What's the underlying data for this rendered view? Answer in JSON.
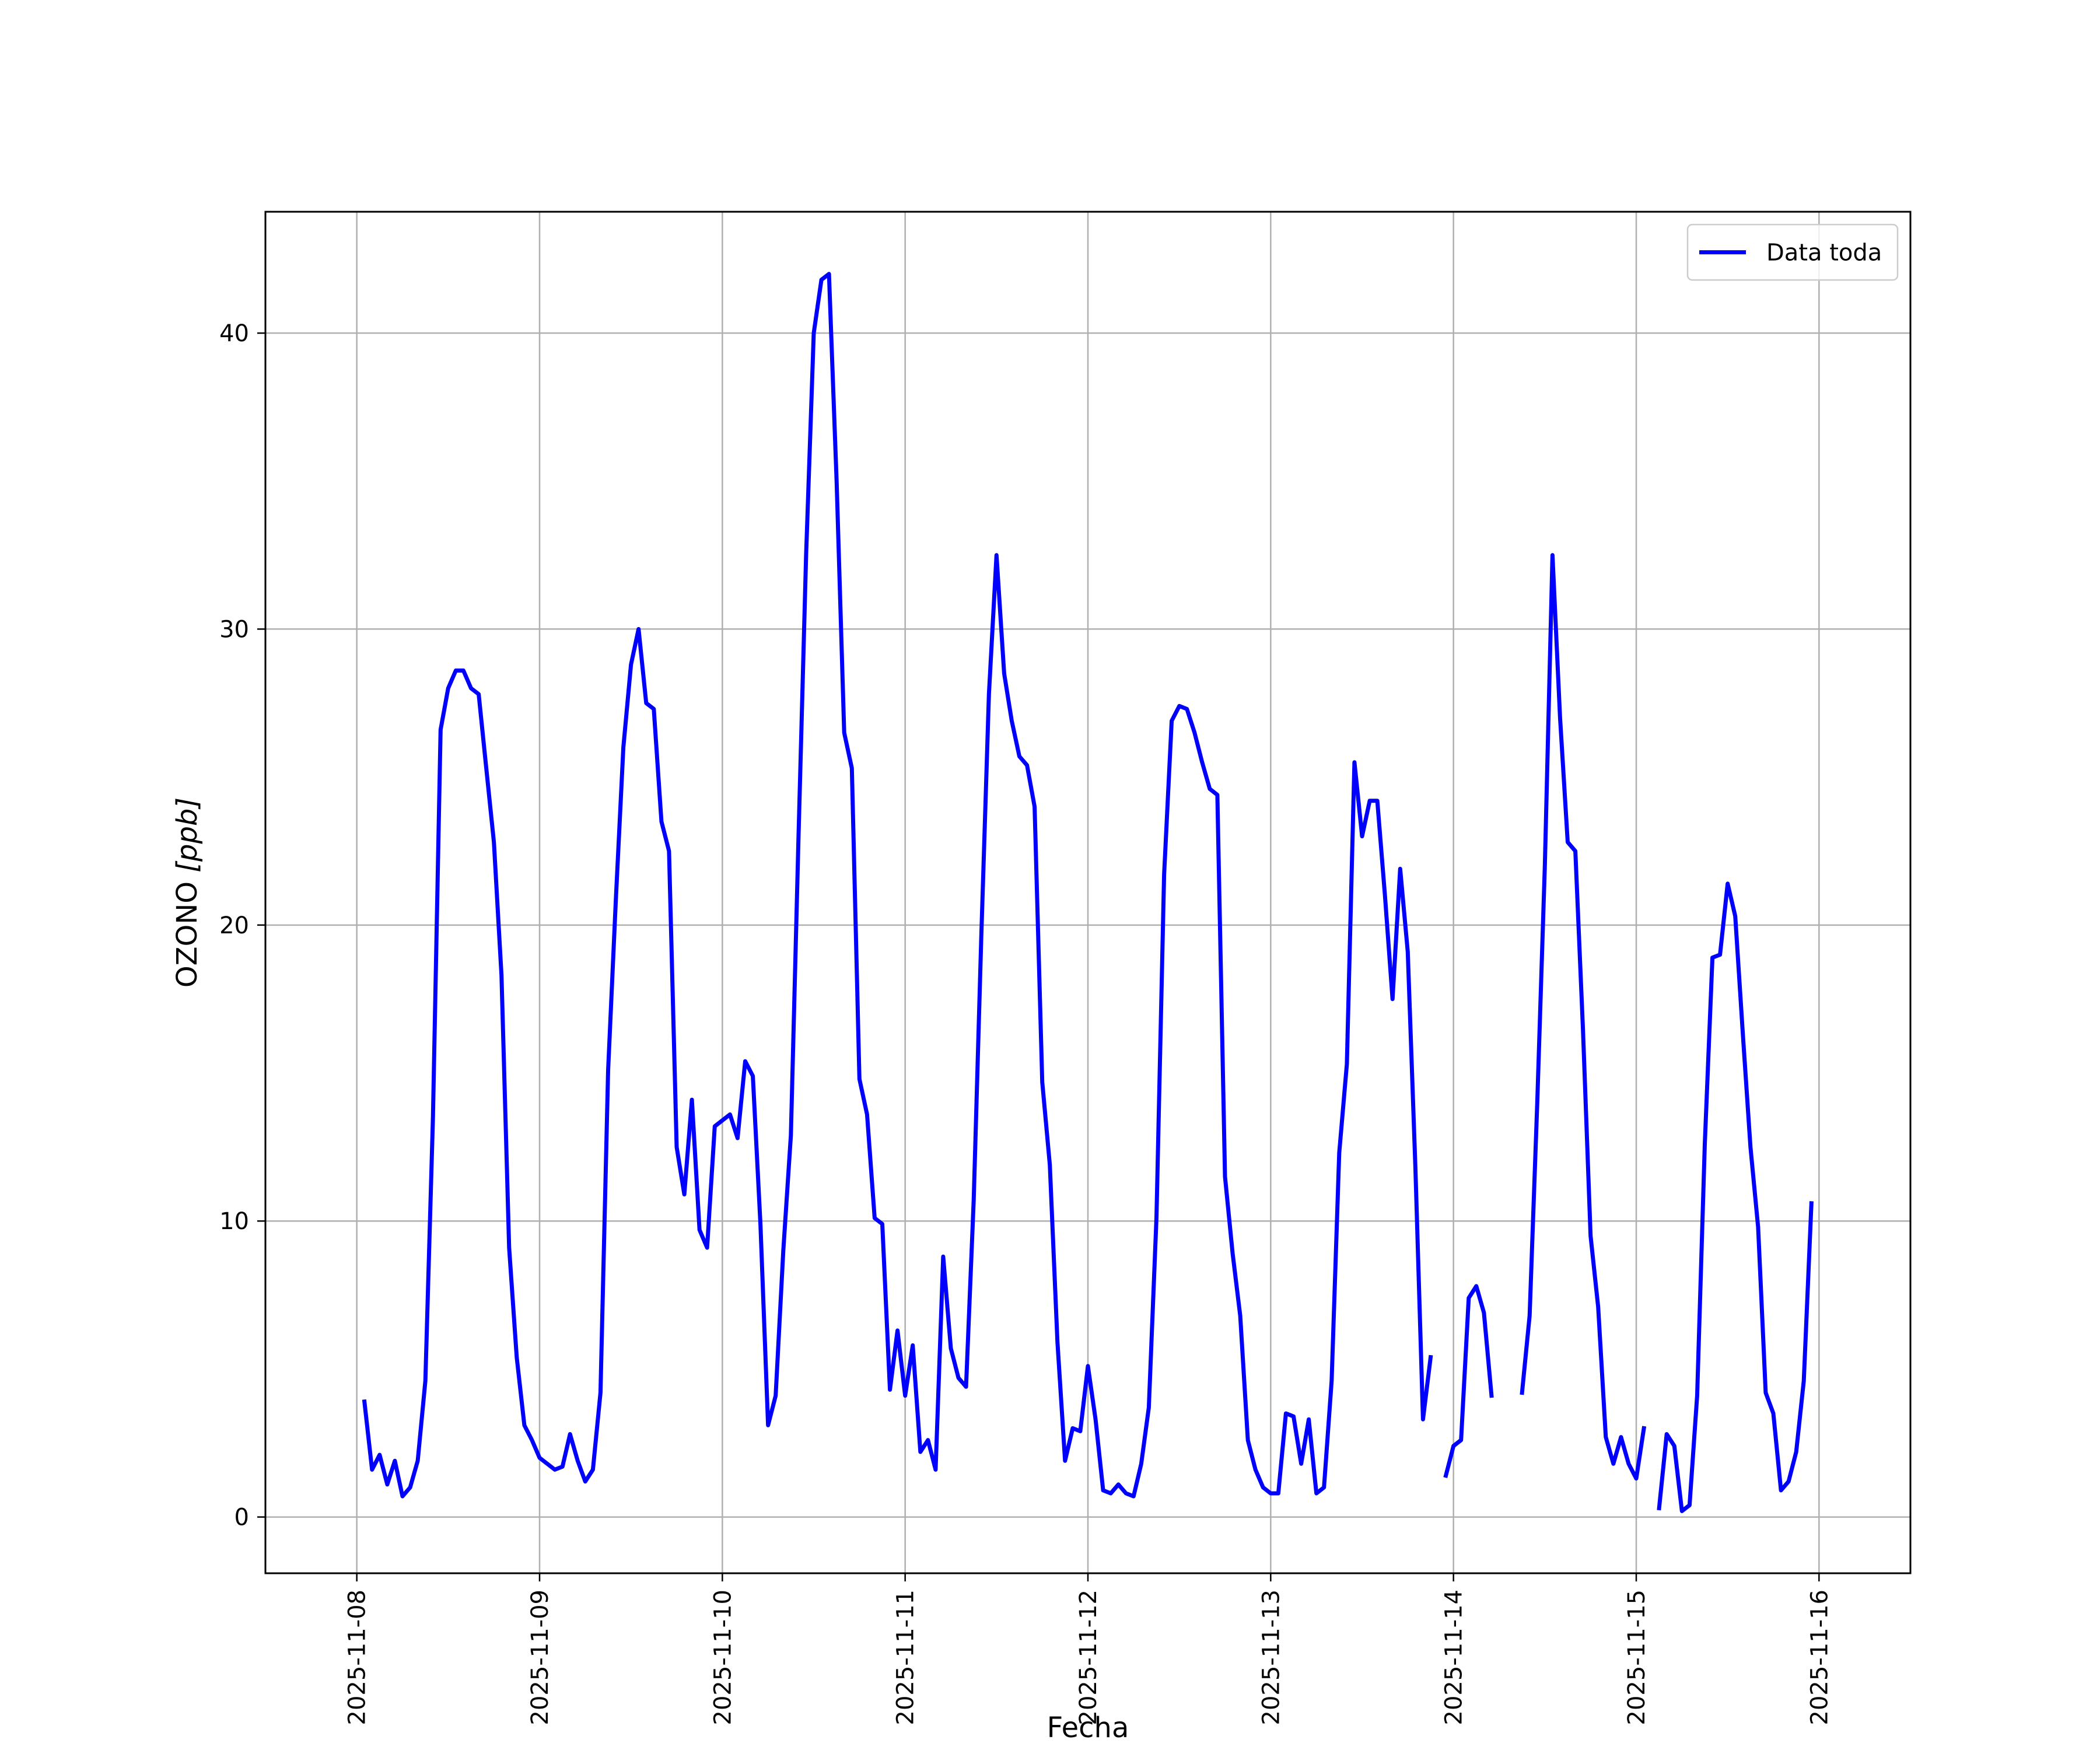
{
  "chart_data": {
    "type": "line",
    "title": "",
    "xlabel": "Fecha",
    "ylabel": "OZONO [ppb]",
    "ylabel_parts": {
      "main": "OZONO ",
      "unit": "[ppb]"
    },
    "x_type": "datetime",
    "xlim": [
      "2025-11-07T12:00",
      "2025-11-16T12:00"
    ],
    "ylim": [
      -1.9,
      44.1
    ],
    "x_ticks": [
      "2025-11-08",
      "2025-11-09",
      "2025-11-10",
      "2025-11-11",
      "2025-11-12",
      "2025-11-13",
      "2025-11-14",
      "2025-11-15",
      "2025-11-16"
    ],
    "y_ticks": [
      0,
      10,
      20,
      30,
      40
    ],
    "grid": true,
    "legend": {
      "position": "upper right",
      "entries": [
        "Data toda"
      ]
    },
    "series": [
      {
        "name": "Data toda",
        "color": "#0000ff",
        "points": [
          [
            "2025-11-08T01:00",
            3.9
          ],
          [
            "2025-11-08T02:00",
            1.6
          ],
          [
            "2025-11-08T03:00",
            2.1
          ],
          [
            "2025-11-08T04:00",
            1.1
          ],
          [
            "2025-11-08T05:00",
            1.9
          ],
          [
            "2025-11-08T06:00",
            0.7
          ],
          [
            "2025-11-08T07:00",
            1.0
          ],
          [
            "2025-11-08T08:00",
            1.9
          ],
          [
            "2025-11-08T09:00",
            4.6
          ],
          [
            "2025-11-08T10:00",
            13.5
          ],
          [
            "2025-11-08T11:00",
            26.6
          ],
          [
            "2025-11-08T12:00",
            28.0
          ],
          [
            "2025-11-08T13:00",
            28.6
          ],
          [
            "2025-11-08T14:00",
            28.6
          ],
          [
            "2025-11-08T15:00",
            28.0
          ],
          [
            "2025-11-08T16:00",
            27.8
          ],
          [
            "2025-11-08T17:00",
            25.3
          ],
          [
            "2025-11-08T18:00",
            22.8
          ],
          [
            "2025-11-08T19:00",
            18.3
          ],
          [
            "2025-11-08T20:00",
            9.1
          ],
          [
            "2025-11-08T21:00",
            5.4
          ],
          [
            "2025-11-08T22:00",
            3.1
          ],
          [
            "2025-11-08T23:00",
            2.6
          ],
          [
            "2025-11-09T00:00",
            2.0
          ],
          [
            "2025-11-09T01:00",
            1.8
          ],
          [
            "2025-11-09T02:00",
            1.6
          ],
          [
            "2025-11-09T03:00",
            1.7
          ],
          [
            "2025-11-09T04:00",
            2.8
          ],
          [
            "2025-11-09T05:00",
            1.9
          ],
          [
            "2025-11-09T06:00",
            1.2
          ],
          [
            "2025-11-09T07:00",
            1.6
          ],
          [
            "2025-11-09T08:00",
            4.2
          ],
          [
            "2025-11-09T09:00",
            15.1
          ],
          [
            "2025-11-09T10:00",
            20.8
          ],
          [
            "2025-11-09T11:00",
            26.0
          ],
          [
            "2025-11-09T12:00",
            28.8
          ],
          [
            "2025-11-09T13:00",
            30.0
          ],
          [
            "2025-11-09T14:00",
            27.5
          ],
          [
            "2025-11-09T15:00",
            27.3
          ],
          [
            "2025-11-09T16:00",
            23.5
          ],
          [
            "2025-11-09T17:00",
            22.5
          ],
          [
            "2025-11-09T18:00",
            12.5
          ],
          [
            "2025-11-09T19:00",
            10.9
          ],
          [
            "2025-11-09T20:00",
            14.1
          ],
          [
            "2025-11-09T21:00",
            9.7
          ],
          [
            "2025-11-09T22:00",
            9.1
          ],
          [
            "2025-11-09T23:00",
            13.2
          ],
          [
            "2025-11-10T00:00",
            13.4
          ],
          [
            "2025-11-10T01:00",
            13.6
          ],
          [
            "2025-11-10T02:00",
            12.8
          ],
          [
            "2025-11-10T03:00",
            15.4
          ],
          [
            "2025-11-10T04:00",
            14.9
          ],
          [
            "2025-11-10T05:00",
            9.9
          ],
          [
            "2025-11-10T06:00",
            3.1
          ],
          [
            "2025-11-10T07:00",
            4.1
          ],
          [
            "2025-11-10T08:00",
            9.0
          ],
          [
            "2025-11-10T09:00",
            12.9
          ],
          [
            "2025-11-10T10:00",
            23.0
          ],
          [
            "2025-11-10T11:00",
            32.5
          ],
          [
            "2025-11-10T12:00",
            40.0
          ],
          [
            "2025-11-10T13:00",
            41.8
          ],
          [
            "2025-11-10T14:00",
            42.0
          ],
          [
            "2025-11-10T15:00",
            35.0
          ],
          [
            "2025-11-10T16:00",
            26.5
          ],
          [
            "2025-11-10T17:00",
            25.3
          ],
          [
            "2025-11-10T18:00",
            14.8
          ],
          [
            "2025-11-10T19:00",
            13.6
          ],
          [
            "2025-11-10T20:00",
            10.1
          ],
          [
            "2025-11-10T21:00",
            9.9
          ],
          [
            "2025-11-10T22:00",
            4.3
          ],
          [
            "2025-11-10T23:00",
            6.3
          ],
          [
            "2025-11-11T00:00",
            4.1
          ],
          [
            "2025-11-11T01:00",
            5.8
          ],
          [
            "2025-11-11T02:00",
            2.2
          ],
          [
            "2025-11-11T03:00",
            2.6
          ],
          [
            "2025-11-11T04:00",
            1.6
          ],
          [
            "2025-11-11T05:00",
            8.8
          ],
          [
            "2025-11-11T06:00",
            5.7
          ],
          [
            "2025-11-11T07:00",
            4.7
          ],
          [
            "2025-11-11T08:00",
            4.4
          ],
          [
            "2025-11-11T09:00",
            10.7
          ],
          [
            "2025-11-11T10:00",
            19.6
          ],
          [
            "2025-11-11T11:00",
            27.8
          ],
          [
            "2025-11-11T12:00",
            32.5
          ],
          [
            "2025-11-11T13:00",
            28.5
          ],
          [
            "2025-11-11T14:00",
            26.9
          ],
          [
            "2025-11-11T15:00",
            25.7
          ],
          [
            "2025-11-11T16:00",
            25.4
          ],
          [
            "2025-11-11T17:00",
            24.0
          ],
          [
            "2025-11-11T18:00",
            14.7
          ],
          [
            "2025-11-11T19:00",
            11.9
          ],
          [
            "2025-11-11T20:00",
            5.9
          ],
          [
            "2025-11-11T21:00",
            1.9
          ],
          [
            "2025-11-11T22:00",
            3.0
          ],
          [
            "2025-11-11T23:00",
            2.9
          ],
          [
            "2025-11-12T00:00",
            5.1
          ],
          [
            "2025-11-12T01:00",
            3.3
          ],
          [
            "2025-11-12T02:00",
            0.9
          ],
          [
            "2025-11-12T03:00",
            0.8
          ],
          [
            "2025-11-12T04:00",
            1.1
          ],
          [
            "2025-11-12T05:00",
            0.8
          ],
          [
            "2025-11-12T06:00",
            0.7
          ],
          [
            "2025-11-12T07:00",
            1.8
          ],
          [
            "2025-11-12T08:00",
            3.7
          ],
          [
            "2025-11-12T09:00",
            10.1
          ],
          [
            "2025-11-12T10:00",
            21.7
          ],
          [
            "2025-11-12T11:00",
            26.9
          ],
          [
            "2025-11-12T12:00",
            27.4
          ],
          [
            "2025-11-12T13:00",
            27.3
          ],
          [
            "2025-11-12T14:00",
            26.5
          ],
          [
            "2025-11-12T15:00",
            25.5
          ],
          [
            "2025-11-12T16:00",
            24.6
          ],
          [
            "2025-11-12T17:00",
            24.4
          ],
          [
            "2025-11-12T18:00",
            11.5
          ],
          [
            "2025-11-12T19:00",
            8.9
          ],
          [
            "2025-11-12T20:00",
            6.8
          ],
          [
            "2025-11-12T21:00",
            2.6
          ],
          [
            "2025-11-12T22:00",
            1.6
          ],
          [
            "2025-11-12T23:00",
            1.0
          ],
          [
            "2025-11-13T00:00",
            0.8
          ],
          [
            "2025-11-13T01:00",
            0.8
          ],
          [
            "2025-11-13T02:00",
            3.5
          ],
          [
            "2025-11-13T03:00",
            3.4
          ],
          [
            "2025-11-13T04:00",
            1.8
          ],
          [
            "2025-11-13T05:00",
            3.3
          ],
          [
            "2025-11-13T06:00",
            0.8
          ],
          [
            "2025-11-13T07:00",
            1.0
          ],
          [
            "2025-11-13T08:00",
            4.6
          ],
          [
            "2025-11-13T09:00",
            12.3
          ],
          [
            "2025-11-13T10:00",
            15.3
          ],
          [
            "2025-11-13T11:00",
            25.5
          ],
          [
            "2025-11-13T12:00",
            23.0
          ],
          [
            "2025-11-13T13:00",
            24.2
          ],
          [
            "2025-11-13T14:00",
            24.2
          ],
          [
            "2025-11-13T15:00",
            21.0
          ],
          [
            "2025-11-13T16:00",
            17.5
          ],
          [
            "2025-11-13T17:00",
            21.9
          ],
          [
            "2025-11-13T18:00",
            19.1
          ],
          [
            "2025-11-13T19:00",
            11.8
          ],
          [
            "2025-11-13T20:00",
            3.3
          ],
          [
            "2025-11-13T21:00",
            5.4
          ],
          [
            "2025-11-13T22:00",
            null
          ],
          [
            "2025-11-13T23:00",
            1.4
          ],
          [
            "2025-11-14T00:00",
            2.4
          ],
          [
            "2025-11-14T01:00",
            2.6
          ],
          [
            "2025-11-14T02:00",
            7.4
          ],
          [
            "2025-11-14T03:00",
            7.8
          ],
          [
            "2025-11-14T04:00",
            6.9
          ],
          [
            "2025-11-14T05:00",
            4.1
          ],
          [
            "2025-11-14T06:00",
            null
          ],
          [
            "2025-11-14T07:00",
            null
          ],
          [
            "2025-11-14T08:00",
            null
          ],
          [
            "2025-11-14T09:00",
            4.2
          ],
          [
            "2025-11-14T10:00",
            6.8
          ],
          [
            "2025-11-14T11:00",
            14.0
          ],
          [
            "2025-11-14T12:00",
            22.0
          ],
          [
            "2025-11-14T13:00",
            32.5
          ],
          [
            "2025-11-14T14:00",
            27.0
          ],
          [
            "2025-11-14T15:00",
            22.8
          ],
          [
            "2025-11-14T16:00",
            22.5
          ],
          [
            "2025-11-14T17:00",
            16.5
          ],
          [
            "2025-11-14T18:00",
            9.5
          ],
          [
            "2025-11-14T19:00",
            7.1
          ],
          [
            "2025-11-14T20:00",
            2.7
          ],
          [
            "2025-11-14T21:00",
            1.8
          ],
          [
            "2025-11-14T22:00",
            2.7
          ],
          [
            "2025-11-14T23:00",
            1.8
          ],
          [
            "2025-11-15T00:00",
            1.3
          ],
          [
            "2025-11-15T01:00",
            3.0
          ],
          [
            "2025-11-15T02:00",
            null
          ],
          [
            "2025-11-15T03:00",
            0.3
          ],
          [
            "2025-11-15T04:00",
            2.8
          ],
          [
            "2025-11-15T05:00",
            2.4
          ],
          [
            "2025-11-15T06:00",
            0.2
          ],
          [
            "2025-11-15T07:00",
            0.4
          ],
          [
            "2025-11-15T08:00",
            4.1
          ],
          [
            "2025-11-15T09:00",
            12.6
          ],
          [
            "2025-11-15T10:00",
            18.9
          ],
          [
            "2025-11-15T11:00",
            19.0
          ],
          [
            "2025-11-15T12:00",
            21.4
          ],
          [
            "2025-11-15T13:00",
            20.3
          ],
          [
            "2025-11-15T14:00",
            16.3
          ],
          [
            "2025-11-15T15:00",
            12.5
          ],
          [
            "2025-11-15T16:00",
            9.8
          ],
          [
            "2025-11-15T17:00",
            4.2
          ],
          [
            "2025-11-15T18:00",
            3.5
          ],
          [
            "2025-11-15T19:00",
            0.9
          ],
          [
            "2025-11-15T20:00",
            1.2
          ],
          [
            "2025-11-15T21:00",
            2.2
          ],
          [
            "2025-11-15T22:00",
            4.6
          ],
          [
            "2025-11-15T23:00",
            10.6
          ]
        ]
      }
    ]
  }
}
